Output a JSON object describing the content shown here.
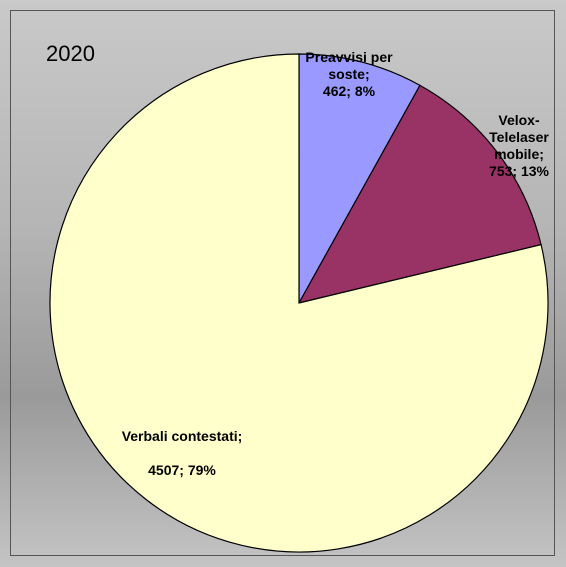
{
  "chart_data": {
    "type": "pie",
    "title": "2020",
    "categories": [
      "Preavvisi per soste;",
      "Velox-Telelaser mobile;",
      "Verbali contestati;"
    ],
    "values": [
      462,
      753,
      4507
    ],
    "value_labels": [
      "462; 8%",
      "753; 13%",
      "4507; 79%"
    ],
    "colors": [
      "#9999ff",
      "#993366",
      "#ffffcc"
    ]
  }
}
